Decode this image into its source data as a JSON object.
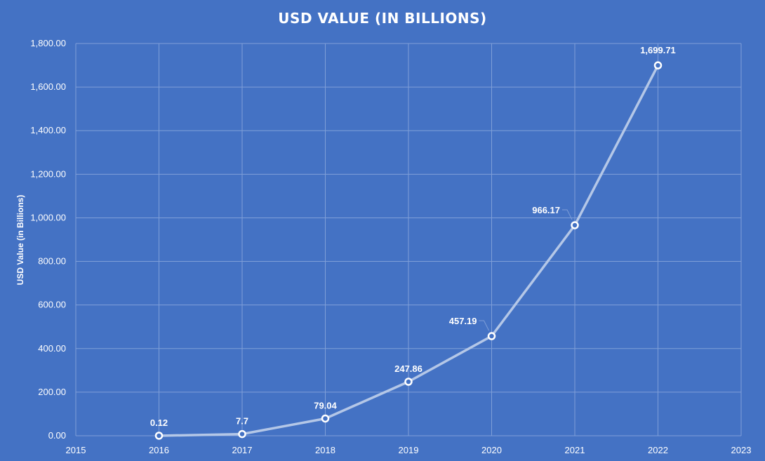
{
  "chart_data": {
    "type": "line",
    "title": "USD VALUE (IN BILLIONS)",
    "xlabel": "",
    "ylabel": "USD Value (in Billions)",
    "xlim": [
      2015,
      2023
    ],
    "ylim": [
      0,
      1800
    ],
    "x_ticks": [
      "2015",
      "2016",
      "2017",
      "2018",
      "2019",
      "2020",
      "2021",
      "2022",
      "2023"
    ],
    "y_ticks": [
      "0.00",
      "200.00",
      "400.00",
      "600.00",
      "800.00",
      "1,000.00",
      "1,200.00",
      "1,400.00",
      "1,600.00",
      "1,800.00"
    ],
    "grid": true,
    "legend": "none",
    "series": [
      {
        "x": [
          2016,
          2017,
          2018,
          2019,
          2020,
          2021,
          2022
        ],
        "values": [
          0.12,
          7.7,
          79.04,
          247.86,
          457.19,
          966.17,
          1699.71
        ],
        "labels": [
          "0.12",
          "7.7",
          "79.04",
          "247.86",
          "457.19",
          "966.17",
          "1,699.71"
        ]
      }
    ],
    "colors": {
      "background": "#4472c4",
      "line": "#b4c7e7",
      "marker_fill": "#4472c4",
      "marker_stroke": "#ffffff",
      "grid": "#7f9fd8",
      "text": "#ffffff"
    }
  }
}
